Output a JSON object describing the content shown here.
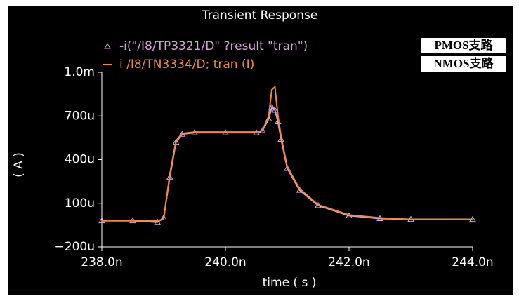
{
  "chart_data": {
    "type": "line",
    "title": "Transient Response",
    "x_label": "time ( s )",
    "y_label": "( A )",
    "annotations": [
      "PMOS支路",
      "NMOS支路"
    ],
    "x": [
      2.38e-07,
      2.385e-07,
      2.389e-07,
      2.39e-07,
      2.391e-07,
      2.392e-07,
      2.393e-07,
      2.395e-07,
      2.4e-07,
      2.405e-07,
      2.406e-07,
      2.407e-07,
      2.4075e-07,
      2.408e-07,
      2.4085e-07,
      2.409e-07,
      2.41e-07,
      2.412e-07,
      2.415e-07,
      2.42e-07,
      2.425e-07,
      2.43e-07,
      2.44e-07
    ],
    "series": [
      {
        "name": "-i(\"/I8/TP3321/D\" ?result \"tran\")",
        "color": "#d9a2dc",
        "marker": "triangle",
        "values": [
          -2e-05,
          -2e-05,
          -3e-05,
          0,
          0.00028,
          0.00052,
          0.000575,
          0.000585,
          0.000585,
          0.000585,
          0.0006,
          0.00068,
          0.00076,
          0.00074,
          0.00066,
          0.00054,
          0.00034,
          0.00019,
          8.5e-05,
          1.5e-05,
          -5e-06,
          -1e-05,
          -1e-05
        ]
      },
      {
        "name": "i /I8/TN3334/D; tran (I)",
        "color": "#f28a3a",
        "marker": "none",
        "values": [
          -2e-05,
          -2e-05,
          -2e-05,
          -1e-05,
          0.0003,
          0.00053,
          0.00058,
          0.00059,
          0.00059,
          0.00059,
          0.0006,
          0.0007,
          0.00088,
          0.0009,
          0.0007,
          0.00056,
          0.00035,
          0.0002,
          9e-05,
          2e-05,
          0,
          -1e-05,
          -1e-05
        ]
      }
    ],
    "xlim": [
      2.38e-07,
      2.44e-07
    ],
    "xticks": [
      {
        "value": 2.38e-07,
        "label": "238.0n"
      },
      {
        "value": 2.4e-07,
        "label": "240.0n"
      },
      {
        "value": 2.42e-07,
        "label": "242.0n"
      },
      {
        "value": 2.44e-07,
        "label": "244.0n"
      }
    ],
    "ylim": [
      -0.0002,
      0.001
    ],
    "yticks": [
      {
        "value": -0.0002,
        "label": "−200u"
      },
      {
        "value": 0.0001,
        "label": "100u"
      },
      {
        "value": 0.0004,
        "label": "400u"
      },
      {
        "value": 0.0007,
        "label": "700u"
      },
      {
        "value": 0.001,
        "label": "1.0m"
      }
    ]
  }
}
